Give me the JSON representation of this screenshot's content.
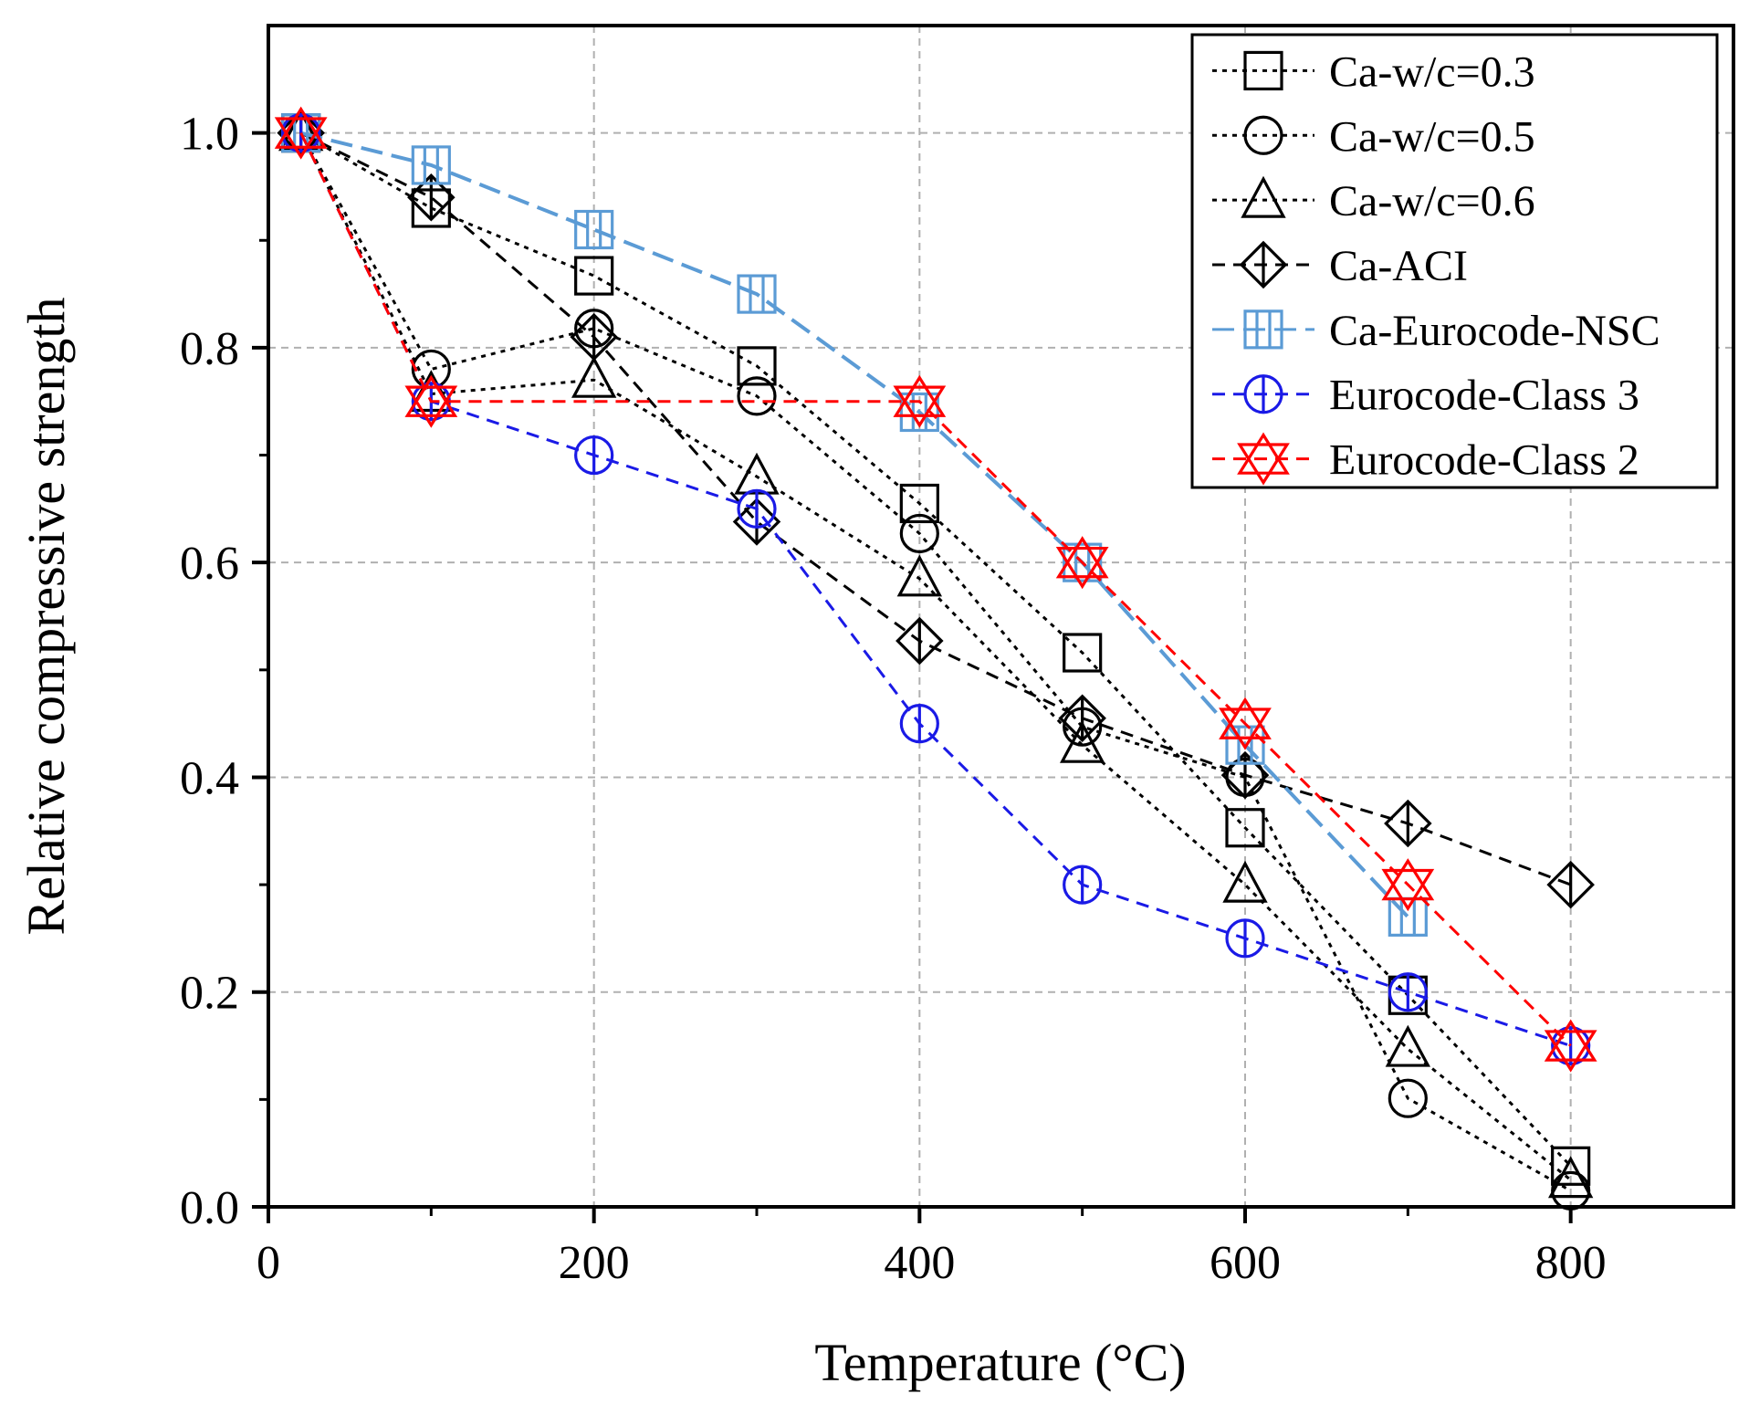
{
  "chart_data": {
    "type": "line",
    "title": "",
    "xlabel": "Temperature (°C)",
    "ylabel": "Relative compressive strength",
    "xlim": [
      0,
      900
    ],
    "ylim": [
      0,
      1.1
    ],
    "xticks": [
      0,
      200,
      400,
      600,
      800
    ],
    "xtick_labels": [
      "0",
      "200",
      "400",
      "600",
      "800"
    ],
    "yticks": [
      0.0,
      0.2,
      0.4,
      0.6,
      0.8,
      1.0
    ],
    "ytick_labels": [
      "0.0",
      "0.2",
      "0.4",
      "0.6",
      "0.8",
      "1.0"
    ],
    "grid": true,
    "legend_position": "top-right",
    "series": [
      {
        "name": "Ca-w/c=0.3",
        "marker": "square",
        "color": "#000000",
        "dash": "dot",
        "x": [
          20,
          100,
          200,
          300,
          400,
          500,
          600,
          700,
          800
        ],
        "y": [
          1.0,
          0.93,
          0.867,
          0.783,
          0.655,
          0.516,
          0.353,
          0.197,
          0.038
        ]
      },
      {
        "name": "Ca-w/c=0.5",
        "marker": "circle",
        "color": "#000000",
        "dash": "dot",
        "x": [
          20,
          100,
          200,
          300,
          400,
          500,
          600,
          700,
          800
        ],
        "y": [
          1.0,
          0.78,
          0.818,
          0.755,
          0.627,
          0.447,
          0.4,
          0.101,
          0.015
        ]
      },
      {
        "name": "Ca-w/c=0.6",
        "marker": "triangle",
        "color": "#000000",
        "dash": "dot",
        "x": [
          20,
          100,
          200,
          300,
          400,
          500,
          600,
          700,
          800
        ],
        "y": [
          1.0,
          0.757,
          0.77,
          0.68,
          0.585,
          0.43,
          0.3,
          0.147,
          0.025
        ]
      },
      {
        "name": "Ca-ACI",
        "marker": "diamond",
        "color": "#000000",
        "dash": "dash",
        "x": [
          20,
          100,
          200,
          300,
          400,
          500,
          600,
          700,
          800
        ],
        "y": [
          1.0,
          0.94,
          0.81,
          0.638,
          0.527,
          0.455,
          0.402,
          0.357,
          0.3
        ]
      },
      {
        "name": "Ca-Eurocode-NSC",
        "marker": "square-bar",
        "color": "#5b9bd5",
        "dash": "longdash",
        "x": [
          20,
          100,
          200,
          300,
          400,
          500,
          600,
          700
        ],
        "y": [
          1.0,
          0.97,
          0.91,
          0.85,
          0.74,
          0.6,
          0.43,
          0.27
        ]
      },
      {
        "name": "Eurocode-Class 3",
        "marker": "circle-bar",
        "color": "#1a1ae6",
        "dash": "dash",
        "x": [
          20,
          100,
          200,
          300,
          400,
          500,
          600,
          700,
          800
        ],
        "y": [
          1.0,
          0.75,
          0.7,
          0.65,
          0.45,
          0.3,
          0.25,
          0.2,
          0.15
        ]
      },
      {
        "name": "Eurocode-Class 2",
        "marker": "star",
        "color": "#ff0000",
        "dash": "dash",
        "x": [
          20,
          100,
          400,
          500,
          600,
          700,
          800
        ],
        "y": [
          1.0,
          0.75,
          0.75,
          0.6,
          0.45,
          0.3,
          0.15
        ]
      }
    ]
  }
}
